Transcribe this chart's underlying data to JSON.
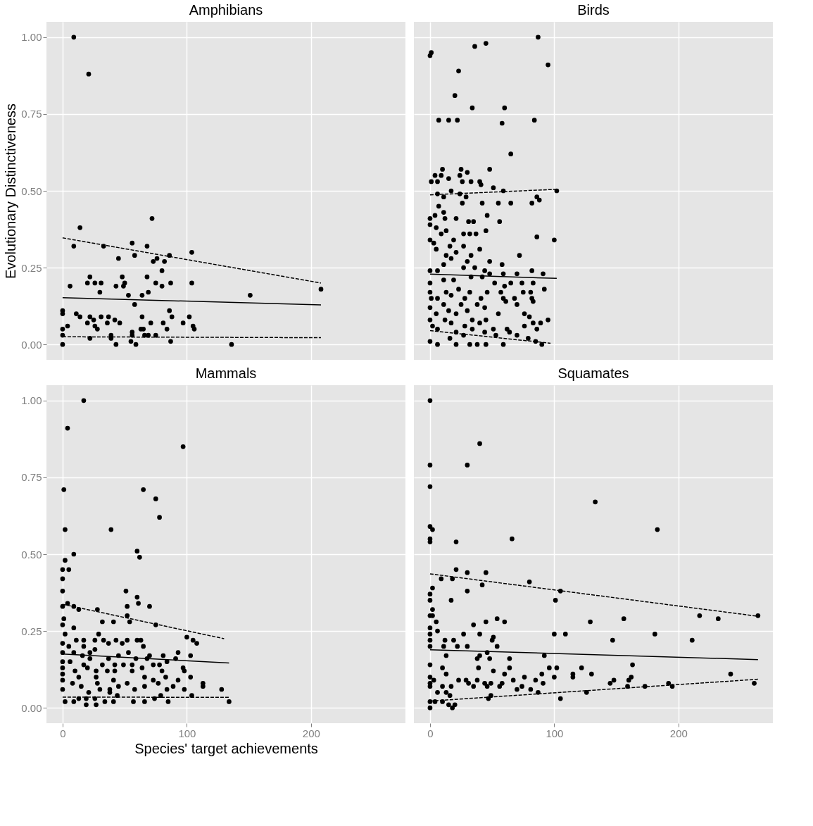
{
  "chart_data": [
    {
      "type": "scatter",
      "title": "Amphibians",
      "ylabel": "Evolutionary Distinctiveness",
      "marker": "circle",
      "grid": true,
      "tick_labels": "y",
      "xlim": [
        -13,
        276
      ],
      "ylim": [
        -0.05,
        1.05
      ],
      "xticks": [
        0,
        100,
        200
      ],
      "yticks": [
        {
          "value": 0,
          "label": "0.00"
        },
        {
          "value": 0.25,
          "label": "0.25"
        },
        {
          "value": 0.5,
          "label": "0.50"
        },
        {
          "value": 0.75,
          "label": "0.75"
        },
        {
          "value": 1,
          "label": "1.00"
        }
      ],
      "series": [
        {
          "type": "scatter",
          "color": "#000000",
          "x": [
            9,
            21,
            14,
            72,
            9,
            33,
            56,
            68,
            45,
            58,
            73,
            76,
            82,
            86,
            104,
            80,
            6,
            22,
            20,
            26,
            31,
            30,
            43,
            48,
            50,
            49,
            68,
            75,
            80,
            87,
            104,
            69,
            64,
            53,
            58,
            151,
            208,
            0,
            0,
            11,
            14,
            22,
            25,
            31,
            37,
            36,
            42,
            20,
            46,
            26,
            28,
            4,
            0,
            0,
            64,
            71,
            86,
            88,
            81,
            97,
            102,
            105,
            106,
            84,
            63,
            65,
            56,
            69,
            75,
            66,
            22,
            39,
            39,
            56,
            55,
            87,
            0,
            43,
            59,
            136
          ],
          "values": [
            1.0,
            0.88,
            0.38,
            0.41,
            0.32,
            0.32,
            0.33,
            0.32,
            0.28,
            0.29,
            0.27,
            0.28,
            0.27,
            0.29,
            0.3,
            0.24,
            0.19,
            0.22,
            0.2,
            0.2,
            0.2,
            0.17,
            0.19,
            0.22,
            0.2,
            0.19,
            0.22,
            0.2,
            0.19,
            0.2,
            0.2,
            0.17,
            0.16,
            0.16,
            0.13,
            0.16,
            0.18,
            0.11,
            0.1,
            0.1,
            0.09,
            0.09,
            0.08,
            0.09,
            0.09,
            0.07,
            0.08,
            0.07,
            0.07,
            0.06,
            0.05,
            0.06,
            0.05,
            0.03,
            0.09,
            0.07,
            0.11,
            0.09,
            0.07,
            0.07,
            0.09,
            0.06,
            0.05,
            0.05,
            0.05,
            0.05,
            0.04,
            0.03,
            0.03,
            0.03,
            0.02,
            0.03,
            0.02,
            0.03,
            0.01,
            0.01,
            0.0,
            0.0,
            0.0,
            0.0
          ]
        },
        {
          "type": "line",
          "line_style": "solid",
          "color": "#000000",
          "x": [
            0,
            208
          ],
          "values": [
            0.152,
            0.129
          ],
          "marker": "none"
        },
        {
          "type": "line",
          "line_style": "dashed",
          "color": "#000000",
          "x": [
            0,
            208
          ],
          "values": [
            0.347,
            0.2
          ],
          "marker": "none"
        },
        {
          "type": "line",
          "line_style": "dashed",
          "color": "#000000",
          "x": [
            0,
            208
          ],
          "values": [
            0.025,
            0.022
          ],
          "marker": "none"
        }
      ]
    },
    {
      "type": "scatter",
      "title": "Birds",
      "marker": "circle",
      "grid": true,
      "tick_labels": false,
      "xlim": [
        -13,
        276
      ],
      "ylim": [
        -0.05,
        1.05
      ],
      "xticks": [
        0,
        100,
        200
      ],
      "yticks": [
        0,
        0.25,
        0.5,
        0.75,
        1
      ],
      "series": [
        {
          "type": "scatter",
          "color": "#000000",
          "x": [
            1,
            0,
            36,
            45,
            87,
            95,
            23,
            20,
            34,
            60,
            7,
            15,
            22,
            58,
            84,
            65,
            10,
            25,
            48,
            4,
            9,
            15,
            24,
            30,
            1,
            6,
            26,
            33,
            40,
            41,
            51,
            59,
            102,
            17,
            6,
            11,
            24,
            29,
            7,
            26,
            42,
            55,
            65,
            82,
            86,
            88,
            11,
            12,
            0,
            4,
            21,
            31,
            35,
            46,
            56,
            0,
            5,
            9,
            13,
            27,
            32,
            37,
            45,
            0,
            86,
            100,
            3,
            5,
            16,
            19,
            27,
            13,
            21,
            33,
            40,
            72,
            11,
            17,
            30,
            48,
            58,
            0,
            6,
            27,
            36,
            44,
            48,
            59,
            70,
            82,
            91,
            0,
            11,
            19,
            33,
            42,
            52,
            60,
            65,
            74,
            83,
            92,
            0,
            13,
            23,
            32,
            46,
            57,
            75,
            81,
            1,
            6,
            17,
            28,
            41,
            59,
            68,
            82,
            11,
            25,
            38,
            61,
            70,
            83,
            0,
            15,
            30,
            44,
            76,
            5,
            21,
            55,
            0,
            12,
            34,
            45,
            80,
            89,
            95,
            2,
            17,
            28,
            40,
            51,
            76,
            83,
            86,
            6,
            21,
            34,
            44,
            62,
            16,
            27,
            53,
            64,
            70,
            79,
            0,
            6,
            21,
            32,
            38,
            45,
            59,
            85,
            90
          ],
          "values": [
            0.95,
            0.94,
            0.97,
            0.98,
            1.0,
            0.91,
            0.89,
            0.81,
            0.77,
            0.77,
            0.73,
            0.73,
            0.73,
            0.72,
            0.73,
            0.62,
            0.57,
            0.57,
            0.57,
            0.55,
            0.55,
            0.54,
            0.55,
            0.56,
            0.53,
            0.53,
            0.53,
            0.53,
            0.53,
            0.52,
            0.51,
            0.5,
            0.5,
            0.5,
            0.49,
            0.48,
            0.49,
            0.48,
            0.45,
            0.46,
            0.46,
            0.46,
            0.46,
            0.46,
            0.48,
            0.47,
            0.43,
            0.41,
            0.41,
            0.42,
            0.41,
            0.4,
            0.4,
            0.42,
            0.4,
            0.39,
            0.38,
            0.36,
            0.37,
            0.36,
            0.36,
            0.36,
            0.37,
            0.34,
            0.35,
            0.34,
            0.33,
            0.31,
            0.32,
            0.34,
            0.32,
            0.29,
            0.3,
            0.29,
            0.31,
            0.29,
            0.26,
            0.28,
            0.27,
            0.27,
            0.26,
            0.24,
            0.24,
            0.25,
            0.25,
            0.24,
            0.23,
            0.23,
            0.23,
            0.24,
            0.23,
            0.2,
            0.21,
            0.21,
            0.22,
            0.22,
            0.2,
            0.19,
            0.2,
            0.2,
            0.2,
            0.18,
            0.17,
            0.17,
            0.18,
            0.17,
            0.17,
            0.17,
            0.17,
            0.17,
            0.15,
            0.15,
            0.16,
            0.15,
            0.15,
            0.15,
            0.15,
            0.15,
            0.13,
            0.13,
            0.13,
            0.14,
            0.13,
            0.14,
            0.12,
            0.11,
            0.11,
            0.12,
            0.1,
            0.1,
            0.1,
            0.1,
            0.08,
            0.08,
            0.08,
            0.08,
            0.09,
            0.07,
            0.08,
            0.06,
            0.07,
            0.06,
            0.07,
            0.05,
            0.06,
            0.07,
            0.05,
            0.05,
            0.04,
            0.05,
            0.04,
            0.05,
            0.02,
            0.03,
            0.03,
            0.04,
            0.03,
            0.02,
            0.01,
            0.0,
            0.0,
            0.0,
            0.0,
            0.0,
            0.0,
            0.01,
            0.0
          ]
        },
        {
          "type": "line",
          "line_style": "solid",
          "color": "#000000",
          "x": [
            0,
            102
          ],
          "values": [
            0.229,
            0.215
          ],
          "marker": "none"
        },
        {
          "type": "line",
          "line_style": "dashed",
          "color": "#000000",
          "x": [
            0,
            102
          ],
          "values": [
            0.487,
            0.505
          ],
          "marker": "none"
        },
        {
          "type": "line",
          "line_style": "dashed",
          "color": "#000000",
          "x": [
            0,
            97
          ],
          "values": [
            0.045,
            0.004
          ],
          "marker": "none"
        }
      ]
    },
    {
      "type": "scatter",
      "title": "Mammals",
      "xlabel": "Species' target achievements",
      "marker": "circle",
      "grid": true,
      "xlim": [
        -13,
        276
      ],
      "ylim": [
        -0.05,
        1.05
      ],
      "xticks": [
        0,
        100,
        200
      ],
      "yticks": [
        {
          "value": 0,
          "label": "0.00"
        },
        {
          "value": 0.25,
          "label": "0.25"
        },
        {
          "value": 0.5,
          "label": "0.50"
        },
        {
          "value": 0.75,
          "label": "0.75"
        },
        {
          "value": 1,
          "label": "1.00"
        }
      ],
      "series": [
        {
          "type": "scatter",
          "color": "#000000",
          "x": [
            17,
            4,
            97,
            1,
            65,
            75,
            78,
            2,
            39,
            9,
            60,
            62,
            2,
            0,
            5,
            0,
            0,
            51,
            60,
            61,
            70,
            4,
            0,
            9,
            13,
            28,
            52,
            52,
            54,
            41,
            32,
            75,
            1,
            0,
            9,
            100,
            105,
            108,
            2,
            11,
            17,
            29,
            26,
            33,
            37,
            43,
            48,
            52,
            60,
            63,
            65,
            0,
            5,
            17,
            26,
            0,
            9,
            16,
            22,
            37,
            45,
            53,
            59,
            70,
            81,
            93,
            103,
            91,
            0,
            6,
            17,
            22,
            32,
            42,
            49,
            56,
            68,
            73,
            78,
            84,
            0,
            10,
            20,
            27,
            36,
            42,
            56,
            64,
            80,
            97,
            98,
            0,
            13,
            27,
            66,
            83,
            103,
            0,
            8,
            15,
            28,
            41,
            52,
            73,
            77,
            93,
            113,
            113,
            0,
            21,
            30,
            38,
            45,
            58,
            66,
            84,
            89,
            98,
            128,
            38,
            44,
            74,
            79,
            104,
            2,
            9,
            13,
            19,
            26,
            27,
            19,
            34,
            41,
            57,
            66,
            85,
            134
          ],
          "values": [
            1.0,
            0.91,
            0.85,
            0.71,
            0.71,
            0.68,
            0.62,
            0.58,
            0.58,
            0.5,
            0.51,
            0.49,
            0.48,
            0.45,
            0.45,
            0.42,
            0.38,
            0.38,
            0.36,
            0.34,
            0.33,
            0.34,
            0.33,
            0.33,
            0.32,
            0.32,
            0.33,
            0.3,
            0.28,
            0.28,
            0.28,
            0.27,
            0.29,
            0.27,
            0.26,
            0.23,
            0.22,
            0.21,
            0.24,
            0.22,
            0.22,
            0.24,
            0.22,
            0.22,
            0.21,
            0.22,
            0.21,
            0.22,
            0.22,
            0.22,
            0.2,
            0.21,
            0.2,
            0.2,
            0.19,
            0.18,
            0.18,
            0.17,
            0.18,
            0.16,
            0.17,
            0.18,
            0.16,
            0.17,
            0.17,
            0.18,
            0.17,
            0.16,
            0.15,
            0.15,
            0.14,
            0.16,
            0.14,
            0.14,
            0.14,
            0.14,
            0.16,
            0.14,
            0.14,
            0.15,
            0.13,
            0.12,
            0.13,
            0.12,
            0.12,
            0.12,
            0.12,
            0.13,
            0.12,
            0.13,
            0.12,
            0.11,
            0.1,
            0.1,
            0.1,
            0.1,
            0.1,
            0.09,
            0.08,
            0.07,
            0.08,
            0.09,
            0.08,
            0.09,
            0.08,
            0.09,
            0.08,
            0.07,
            0.06,
            0.05,
            0.06,
            0.06,
            0.07,
            0.06,
            0.07,
            0.06,
            0.07,
            0.06,
            0.06,
            0.05,
            0.04,
            0.03,
            0.04,
            0.04,
            0.02,
            0.02,
            0.03,
            0.03,
            0.03,
            0.01,
            0.01,
            0.02,
            0.02,
            0.02,
            0.02,
            0.02,
            0.02
          ]
        },
        {
          "type": "line",
          "line_style": "solid",
          "color": "#000000",
          "x": [
            0,
            134
          ],
          "values": [
            0.175,
            0.146
          ],
          "marker": "none"
        },
        {
          "type": "line",
          "line_style": "dashed",
          "color": "#000000",
          "x": [
            0,
            130
          ],
          "values": [
            0.337,
            0.225
          ],
          "marker": "none"
        },
        {
          "type": "line",
          "line_style": "dashed",
          "color": "#000000",
          "x": [
            0,
            134
          ],
          "values": [
            0.035,
            0.034
          ],
          "marker": "none"
        }
      ]
    },
    {
      "type": "scatter",
      "title": "Squamates",
      "marker": "circle",
      "grid": true,
      "tick_labels": "x",
      "xlim": [
        -13,
        276
      ],
      "ylim": [
        -0.05,
        1.05
      ],
      "xticks": [
        0,
        100,
        200
      ],
      "yticks": [
        0,
        0.25,
        0.5,
        0.75,
        1
      ],
      "series": [
        {
          "type": "scatter",
          "color": "#000000",
          "x": [
            0,
            40,
            0,
            30,
            0,
            133,
            183,
            0,
            2,
            0,
            0,
            21,
            66,
            21,
            30,
            45,
            9,
            18,
            42,
            80,
            105,
            2,
            0,
            30,
            101,
            0,
            17,
            2,
            0,
            2,
            217,
            232,
            264,
            54,
            60,
            45,
            129,
            156,
            35,
            5,
            0,
            6,
            27,
            40,
            51,
            100,
            109,
            181,
            0,
            0,
            12,
            19,
            50,
            147,
            211,
            0,
            11,
            22,
            30,
            54,
            46,
            13,
            40,
            92,
            38,
            48,
            64,
            0,
            39,
            51,
            10,
            13,
            64,
            96,
            102,
            122,
            163,
            60,
            0,
            90,
            115,
            130,
            162,
            242,
            0,
            3,
            23,
            29,
            38,
            44,
            49,
            58,
            67,
            76,
            85,
            100,
            115,
            148,
            160,
            192,
            195,
            261,
            0,
            10,
            17,
            31,
            35,
            46,
            56,
            74,
            91,
            145,
            159,
            173,
            6,
            13,
            70,
            81,
            87,
            126,
            16,
            49,
            47,
            105,
            0,
            4,
            10,
            0,
            15,
            18,
            20
          ],
          "values": [
            1.0,
            0.86,
            0.79,
            0.79,
            0.72,
            0.67,
            0.58,
            0.59,
            0.58,
            0.55,
            0.54,
            0.54,
            0.55,
            0.45,
            0.44,
            0.44,
            0.42,
            0.42,
            0.4,
            0.41,
            0.38,
            0.39,
            0.37,
            0.38,
            0.35,
            0.35,
            0.35,
            0.32,
            0.3,
            0.3,
            0.3,
            0.29,
            0.3,
            0.29,
            0.28,
            0.28,
            0.28,
            0.29,
            0.27,
            0.28,
            0.26,
            0.25,
            0.24,
            0.24,
            0.23,
            0.24,
            0.24,
            0.24,
            0.24,
            0.22,
            0.22,
            0.22,
            0.22,
            0.22,
            0.22,
            0.2,
            0.2,
            0.2,
            0.2,
            0.2,
            0.18,
            0.17,
            0.17,
            0.17,
            0.16,
            0.16,
            0.16,
            0.14,
            0.13,
            0.12,
            0.13,
            0.11,
            0.13,
            0.13,
            0.13,
            0.13,
            0.14,
            0.11,
            0.1,
            0.11,
            0.11,
            0.11,
            0.1,
            0.11,
            0.08,
            0.09,
            0.09,
            0.09,
            0.09,
            0.08,
            0.08,
            0.08,
            0.09,
            0.1,
            0.09,
            0.1,
            0.1,
            0.09,
            0.09,
            0.08,
            0.07,
            0.08,
            0.07,
            0.07,
            0.07,
            0.08,
            0.07,
            0.07,
            0.07,
            0.07,
            0.08,
            0.08,
            0.07,
            0.07,
            0.05,
            0.05,
            0.06,
            0.06,
            0.05,
            0.05,
            0.04,
            0.04,
            0.03,
            0.03,
            0.02,
            0.02,
            0.02,
            0.0,
            0.01,
            0.0,
            0.01
          ]
        },
        {
          "type": "line",
          "line_style": "solid",
          "color": "#000000",
          "x": [
            0,
            264
          ],
          "values": [
            0.189,
            0.157
          ],
          "marker": "none"
        },
        {
          "type": "line",
          "line_style": "dashed",
          "color": "#000000",
          "x": [
            0,
            264
          ],
          "values": [
            0.436,
            0.298
          ],
          "marker": "none"
        },
        {
          "type": "line",
          "line_style": "dashed",
          "color": "#000000",
          "x": [
            0,
            264
          ],
          "values": [
            0.022,
            0.093
          ],
          "marker": "none"
        }
      ]
    }
  ]
}
